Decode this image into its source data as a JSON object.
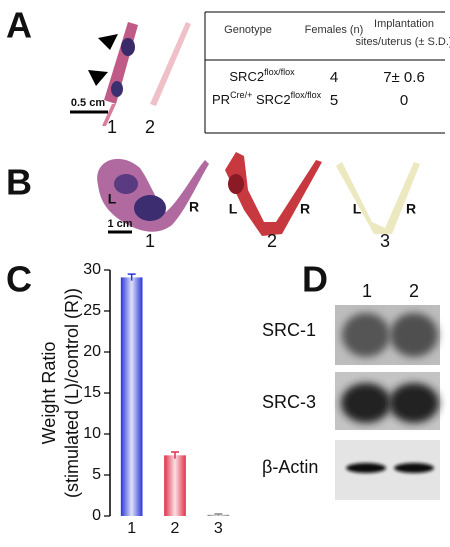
{
  "panel_a": {
    "label": "A",
    "scale": "0.5 cm",
    "lanes": [
      "1",
      "2"
    ],
    "table": {
      "header": [
        "Genotype",
        "Females (n)",
        [
          "Implantation",
          "sites/uterus (± S.D.)"
        ]
      ],
      "rows": [
        [
          [
            {
              "text": "SRC2",
              "sup": "flox/flox"
            }
          ],
          "4",
          "7± 0.6"
        ],
        [
          [
            {
              "text": "PR",
              "sup": "Cre/+"
            },
            {
              "text": " SRC2",
              "sup": "flox/flox"
            }
          ],
          "5",
          "0"
        ]
      ]
    }
  },
  "panel_b": {
    "label": "B",
    "scale": "1 cm",
    "samples": [
      {
        "left": "L",
        "right": "R",
        "lane": "1"
      },
      {
        "left": "L",
        "right": "R",
        "lane": "2"
      },
      {
        "left": "L",
        "right": "R",
        "lane": "3"
      }
    ]
  },
  "panel_c": {
    "label": "C"
  },
  "chart_data": {
    "type": "bar",
    "y_label": [
      "Weight Ratio",
      "(stimulated (L)/control (R))"
    ],
    "categories": [
      "1",
      "2",
      "3"
    ],
    "values": [
      29.1,
      7.4,
      0.15
    ],
    "errors": [
      0.4,
      0.4,
      0.1
    ],
    "colors": [
      "#2a35d8",
      "#e0304a",
      "#888888"
    ],
    "ylim": [
      0,
      30
    ],
    "yticks": [
      0,
      5,
      10,
      15,
      20,
      25,
      30
    ]
  },
  "panel_d": {
    "label": "D",
    "lanes": [
      "1",
      "2"
    ],
    "rows": [
      "SRC-1",
      "SRC-3",
      "β-Actin"
    ]
  }
}
